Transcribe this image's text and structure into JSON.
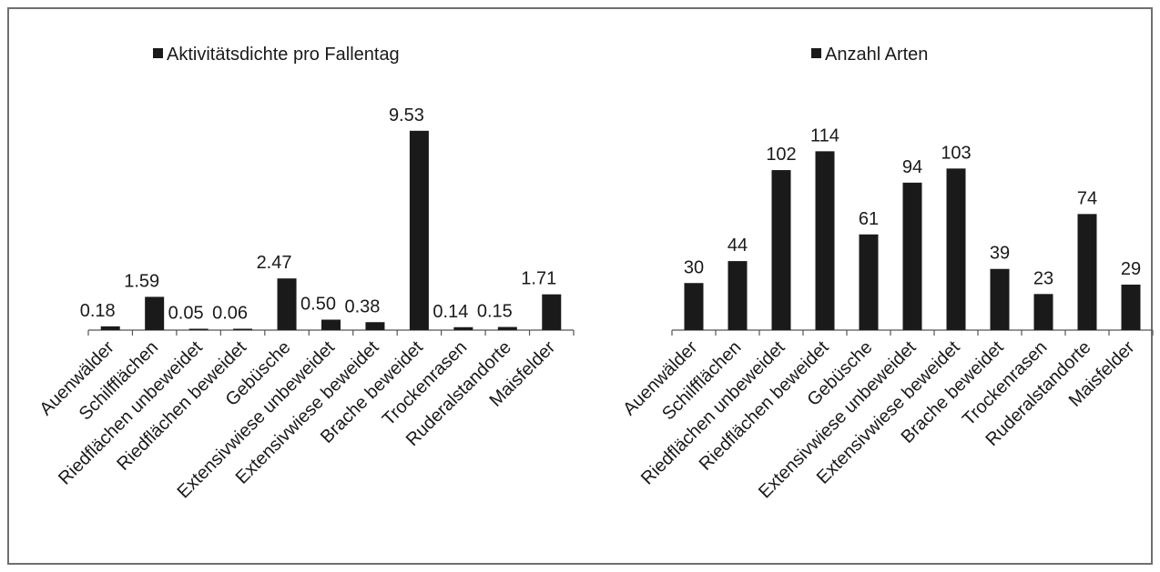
{
  "chart_data": [
    {
      "type": "bar",
      "legend": "Aktivitätsdichte pro Fallentag",
      "legend_position": "top",
      "color": "#1a1a1a",
      "grid": false,
      "categories": [
        "Auenwälder",
        "Schilfflächen",
        "Riedflächen unbeweidet",
        "Riedflächen beweidet",
        "Gebüsche",
        "Extensivwiese unbeweidet",
        "Extensivwiese beweidet",
        "Brache beweidet",
        "Trockenrasen",
        "Ruderalstandorte",
        "Maisfelder"
      ],
      "series": [
        {
          "name": "Aktivitätsdichte pro Fallentag",
          "values": [
            0.18,
            1.59,
            0.05,
            0.06,
            2.47,
            0.5,
            0.38,
            9.53,
            0.14,
            0.15,
            1.71
          ],
          "labels": [
            "0.18",
            "1.59",
            "0.05",
            "0.06",
            "2.47",
            "0.50",
            "0.38",
            "9.53",
            "0.14",
            "0.15",
            "1.71"
          ]
        }
      ],
      "ylim": [
        0,
        10
      ]
    },
    {
      "type": "bar",
      "legend": "Anzahl Arten",
      "legend_position": "top",
      "color": "#1a1a1a",
      "grid": false,
      "categories": [
        "Auenwälder",
        "Schilfflächen",
        "Riedflächen unbeweidet",
        "Riedflächen beweidet",
        "Gebüsche",
        "Extensivwiese unbeweidet",
        "Extensivwiese beweidet",
        "Brache beweidet",
        "Trockenrasen",
        "Ruderalstandorte",
        "Maisfelder"
      ],
      "series": [
        {
          "name": "Anzahl Arten",
          "values": [
            30,
            44,
            102,
            114,
            61,
            94,
            103,
            39,
            23,
            74,
            29
          ],
          "labels": [
            "30",
            "44",
            "102",
            "114",
            "61",
            "94",
            "103",
            "39",
            "23",
            "74",
            "29"
          ]
        }
      ],
      "ylim": [
        0,
        120
      ]
    }
  ]
}
